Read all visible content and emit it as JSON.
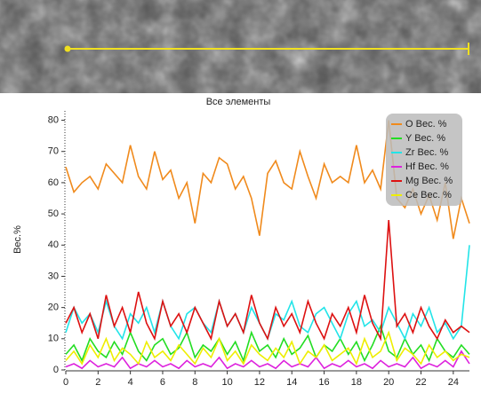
{
  "chart_data": {
    "type": "line",
    "title": "Все элементы",
    "y_label": "Вес.%",
    "x": [
      0,
      0.5,
      1,
      1.5,
      2,
      2.5,
      3,
      3.5,
      4,
      4.5,
      5,
      5.5,
      6,
      6.5,
      7,
      7.5,
      8,
      8.5,
      9,
      9.5,
      10,
      10.5,
      11,
      11.5,
      12,
      12.5,
      13,
      13.5,
      14,
      14.5,
      15,
      15.5,
      16,
      16.5,
      17,
      17.5,
      18,
      18.5,
      19,
      19.5,
      20,
      20.5,
      21,
      21.5,
      22,
      22.5,
      23,
      23.5,
      24,
      24.5,
      25
    ],
    "series": [
      {
        "name": "O Вес. %",
        "color": "#f08a1c",
        "values": [
          65,
          57,
          60,
          62,
          58,
          66,
          63,
          60,
          72,
          62,
          58,
          70,
          61,
          64,
          55,
          60,
          47,
          63,
          60,
          68,
          66,
          58,
          62,
          55,
          43,
          63,
          67,
          60,
          58,
          70,
          62,
          55,
          66,
          60,
          62,
          60,
          72,
          60,
          64,
          58,
          80,
          55,
          52,
          58,
          50,
          56,
          48,
          60,
          42,
          55,
          47
        ]
      },
      {
        "name": "Y Вес. %",
        "color": "#22dd22",
        "values": [
          5,
          8,
          3,
          10,
          6,
          4,
          9,
          5,
          12,
          6,
          3,
          8,
          10,
          5,
          7,
          12,
          4,
          8,
          6,
          10,
          5,
          9,
          3,
          12,
          6,
          8,
          4,
          10,
          5,
          7,
          11,
          4,
          8,
          6,
          10,
          5,
          9,
          3,
          8,
          14,
          6,
          4,
          10,
          5,
          8,
          3,
          10,
          6,
          4,
          8,
          5
        ]
      },
      {
        "name": "Zr Вес. %",
        "color": "#22e4e8",
        "values": [
          12,
          20,
          15,
          18,
          12,
          22,
          14,
          10,
          18,
          15,
          20,
          12,
          22,
          14,
          10,
          18,
          20,
          15,
          12,
          22,
          14,
          18,
          12,
          20,
          15,
          10,
          18,
          16,
          22,
          14,
          12,
          18,
          20,
          15,
          10,
          18,
          22,
          14,
          16,
          12,
          20,
          15,
          10,
          18,
          14,
          20,
          12,
          15,
          10,
          14,
          40
        ]
      },
      {
        "name": "Hf Вес. %",
        "color": "#dd22dd",
        "values": [
          1,
          2,
          0.5,
          3,
          1,
          2,
          1,
          4,
          0.5,
          2,
          1,
          3,
          1,
          2,
          0.5,
          3,
          1,
          2,
          1,
          4,
          0.5,
          2,
          1,
          3,
          1,
          2,
          0.5,
          3,
          1,
          2,
          1,
          4,
          0.5,
          2,
          1,
          3,
          1,
          2,
          0.5,
          3,
          1,
          2,
          1,
          4,
          0.5,
          2,
          1,
          3,
          1,
          6,
          2
        ]
      },
      {
        "name": "Mg Вес. %",
        "color": "#dd1111",
        "values": [
          15,
          20,
          12,
          18,
          10,
          24,
          14,
          20,
          12,
          25,
          15,
          10,
          22,
          14,
          18,
          12,
          20,
          15,
          10,
          22,
          14,
          18,
          12,
          24,
          15,
          10,
          20,
          14,
          18,
          12,
          22,
          15,
          10,
          18,
          14,
          20,
          12,
          24,
          15,
          10,
          48,
          14,
          18,
          12,
          20,
          14,
          10,
          16,
          12,
          14,
          12
        ]
      },
      {
        "name": "Ce Вес. %",
        "color": "#eeee00",
        "values": [
          3,
          6,
          2,
          8,
          4,
          10,
          3,
          7,
          5,
          2,
          9,
          4,
          6,
          3,
          8,
          5,
          2,
          7,
          4,
          10,
          3,
          6,
          2,
          8,
          5,
          3,
          7,
          4,
          9,
          2,
          6,
          4,
          8,
          3,
          5,
          7,
          2,
          10,
          4,
          6,
          12,
          3,
          7,
          5,
          2,
          8,
          4,
          6,
          3,
          5,
          4
        ]
      }
    ],
    "xlim": [
      0,
      25
    ],
    "xticks": [
      0,
      2,
      4,
      6,
      8,
      10,
      12,
      14,
      16,
      18,
      20,
      22,
      24
    ],
    "ylim": [
      0,
      83
    ],
    "yticks": [
      0,
      10,
      20,
      30,
      40,
      50,
      60,
      70,
      80
    ],
    "legend": "upper right"
  }
}
